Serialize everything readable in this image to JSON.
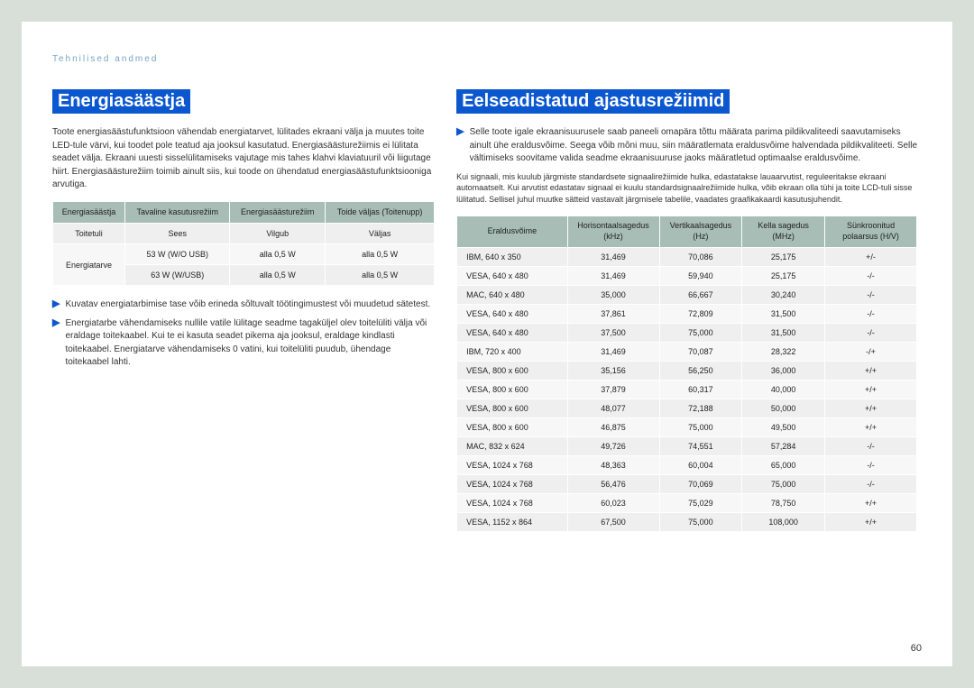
{
  "breadcrumb": "Tehnilised andmed",
  "page_number": "60",
  "left": {
    "heading": "Energiasäästja",
    "intro": "Toote energiasäästufunktsioon vähendab energiatarvet, lülitades ekraani välja ja muutes toite LED-tule värvi, kui toodet pole teatud aja jooksul kasutatud. Energiasäästurežiimis ei lülitata seadet välja. Ekraani uuesti sisselülitamiseks vajutage mis tahes klahvi klaviatuuril või liigutage hiirt. Energiasäästurežiim toimib ainult siis, kui toode on ühendatud energiasäästufunktsiooniga arvutiga.",
    "table": {
      "headers": [
        "Energiasäästja",
        "Tavaline kasutusrežiim",
        "Energiasäästurežiim",
        "Toide väljas (Toitenupp)"
      ],
      "rows": [
        {
          "label": "Toitetuli",
          "cells": [
            "Sees",
            "Vilgub",
            "Väljas"
          ],
          "rowspan": 1
        },
        {
          "label": "Energiatarve",
          "cells": [
            "53 W (W/O USB)",
            "alla 0,5 W",
            "alla 0,5 W"
          ],
          "rowspan": 2
        },
        {
          "label": "",
          "cells": [
            "63 W (W/USB)",
            "alla 0,5 W",
            "alla 0,5 W"
          ],
          "rowspan": 0
        }
      ]
    },
    "bullets": [
      "Kuvatav energiatarbimise tase võib erineda sõltuvalt töötingimustest või muudetud sätetest.",
      "Energiatarbe vähendamiseks nullile vatile lülitage seadme tagaküljel olev toitelüliti välja või eraldage toitekaabel. Kui te ei kasuta seadet pikema aja jooksul, eraldage kindlasti toitekaabel. Energiatarve vähendamiseks 0 vatini, kui toitelüliti puudub, ühendage toitekaabel lahti."
    ]
  },
  "right": {
    "heading": "Eelseadistatud ajastusrežiimid",
    "bullet": "Selle toote igale ekraanisuurusele saab paneeli omapära tõttu määrata parima pildikvaliteedi saavutamiseks ainult ühe eraldusvõime. Seega võib mõni muu, siin määratlemata eraldusvõime halvendada pildikvaliteeti. Selle vältimiseks soovitame valida seadme ekraanisuuruse jaoks määratletud optimaalse eraldusvõime.",
    "small": "Kui signaali, mis kuulub järgmiste standardsete signaalirežiimide hulka, edastatakse lauaarvutist, reguleeritakse ekraani automaatselt. Kui arvutist edastatav signaal ei kuulu standardsignaalrežiimide hulka, võib ekraan olla tühi ja toite LCD-tuli sisse lülitatud. Sellisel juhul muutke sätteid vastavalt järgmisele tabelile, vaadates graafikakaardi kasutusjuhendit.",
    "table": {
      "headers": [
        "Eraldusvõime",
        "Horisontaalsagedus (kHz)",
        "Vertikaalsagedus (Hz)",
        "Kella sagedus (MHz)",
        "Sünkroonitud polaarsus (H/V)"
      ],
      "rows": [
        [
          "IBM, 640 x 350",
          "31,469",
          "70,086",
          "25,175",
          "+/-"
        ],
        [
          "VESA, 640 x 480",
          "31,469",
          "59,940",
          "25,175",
          "-/-"
        ],
        [
          "MAC, 640 x 480",
          "35,000",
          "66,667",
          "30,240",
          "-/-"
        ],
        [
          "VESA, 640 x 480",
          "37,861",
          "72,809",
          "31,500",
          "-/-"
        ],
        [
          "VESA, 640 x 480",
          "37,500",
          "75,000",
          "31,500",
          "-/-"
        ],
        [
          "IBM, 720 x 400",
          "31,469",
          "70,087",
          "28,322",
          "-/+"
        ],
        [
          "VESA, 800 x 600",
          "35,156",
          "56,250",
          "36,000",
          "+/+"
        ],
        [
          "VESA, 800 x 600",
          "37,879",
          "60,317",
          "40,000",
          "+/+"
        ],
        [
          "VESA, 800 x 600",
          "48,077",
          "72,188",
          "50,000",
          "+/+"
        ],
        [
          "VESA, 800 x 600",
          "46,875",
          "75,000",
          "49,500",
          "+/+"
        ],
        [
          "MAC, 832 x 624",
          "49,726",
          "74,551",
          "57,284",
          "-/-"
        ],
        [
          "VESA, 1024 x 768",
          "48,363",
          "60,004",
          "65,000",
          "-/-"
        ],
        [
          "VESA, 1024 x 768",
          "56,476",
          "70,069",
          "75,000",
          "-/-"
        ],
        [
          "VESA, 1024 x 768",
          "60,023",
          "75,029",
          "78,750",
          "+/+"
        ],
        [
          "VESA, 1152 x 864",
          "67,500",
          "75,000",
          "108,000",
          "+/+"
        ]
      ]
    }
  }
}
